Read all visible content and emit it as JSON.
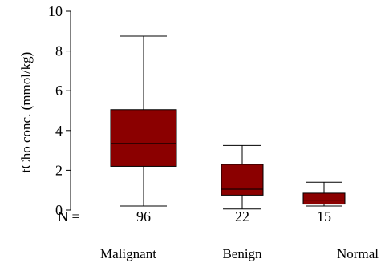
{
  "chart_data": {
    "type": "box",
    "ylabel": "tCho conc. (mmol/kg)",
    "ylim": [
      0,
      10
    ],
    "yticks": [
      0,
      2,
      4,
      6,
      8,
      10
    ],
    "n_prefix": "N =",
    "box_color": "#8b0000",
    "groups": [
      {
        "category": "Malignant",
        "n": "96",
        "min": 0.2,
        "q1": 2.2,
        "median": 3.35,
        "q3": 5.05,
        "max": 8.75
      },
      {
        "category": "Benign",
        "n": "22",
        "min": 0.05,
        "q1": 0.75,
        "median": 1.05,
        "q3": 2.3,
        "max": 3.25
      },
      {
        "category": "Normal",
        "n": "15",
        "min": 0.2,
        "q1": 0.3,
        "median": 0.5,
        "q3": 0.85,
        "max": 1.4
      }
    ]
  }
}
